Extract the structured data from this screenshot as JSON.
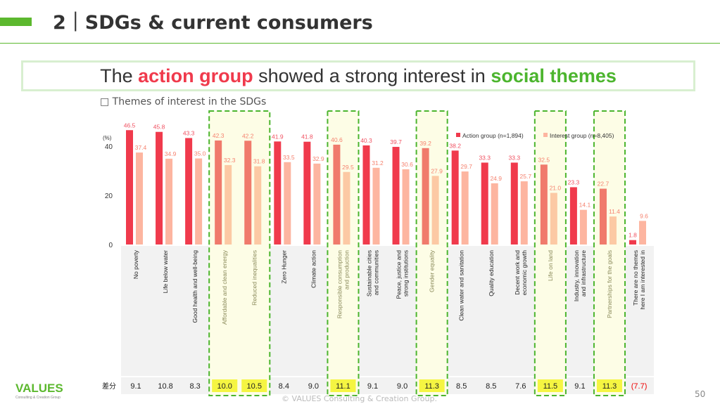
{
  "header": {
    "title": "2｜SDGs & current consumers"
  },
  "headline": {
    "pre": "The ",
    "red": "action group",
    "mid": " showed a strong interest in ",
    "green": "social themes"
  },
  "footer": {
    "logo": "VALUES",
    "logo_sub": "Consulting & Creation Group",
    "copyright": "© VALUES Consulting & Creation Group.",
    "page": "50"
  },
  "colors": {
    "action": "#f03a4c",
    "interest": "#fdb5a0",
    "action_highlight": "#f07a6c",
    "interest_highlight": "#fcc9a4",
    "highlight_bg": "#fdfde6",
    "highlight_border": "#4cb52e",
    "diff_highlight": "#f5f542"
  },
  "chart_data": {
    "type": "bar",
    "title": "□ Themes of interest in the SDGs",
    "ylabel": "(%)",
    "ylim": [
      0,
      50
    ],
    "yticks": [
      0,
      20,
      40
    ],
    "legend_placement": "top-right",
    "categories": [
      "No poverty",
      "Life below water",
      "Good health and well-being",
      "Affordable and clean energy",
      "Reduced inequalities",
      "Zero Hunger",
      "Climate action",
      "Responsible consumption and production",
      "Sustainable cities and communities",
      "Peace, justice and strong institutions",
      "Gender equality",
      "Clean water and sanitation",
      "Quality education",
      "Decent work and economic growth",
      "Life on land",
      "Industry, innovation and infrastructure",
      "Partnerships for the goals",
      "There are no themes here I am interested in"
    ],
    "series": [
      {
        "name": "Action group (n=1,894)",
        "values": [
          46.5,
          45.8,
          43.3,
          42.3,
          42.2,
          41.9,
          41.8,
          40.6,
          40.3,
          39.7,
          39.2,
          38.2,
          33.3,
          33.3,
          32.5,
          23.3,
          22.7,
          1.8
        ]
      },
      {
        "name": "Interest group (n=8,405)",
        "values": [
          37.4,
          34.9,
          35.0,
          32.3,
          31.8,
          33.5,
          32.9,
          29.5,
          31.2,
          30.6,
          27.9,
          29.7,
          24.9,
          25.7,
          21.0,
          14.1,
          11.4,
          9.6
        ]
      }
    ],
    "highlighted": [
      false,
      false,
      false,
      true,
      true,
      false,
      false,
      true,
      false,
      false,
      true,
      false,
      false,
      false,
      true,
      false,
      true,
      false
    ],
    "diff_label": "差分",
    "diff": [
      "9.1",
      "10.8",
      "8.3",
      "10.0",
      "10.5",
      "8.4",
      "9.0",
      "11.1",
      "9.1",
      "9.0",
      "11.3",
      "8.5",
      "8.5",
      "7.6",
      "11.5",
      "9.1",
      "11.3",
      "(7.7)"
    ]
  }
}
